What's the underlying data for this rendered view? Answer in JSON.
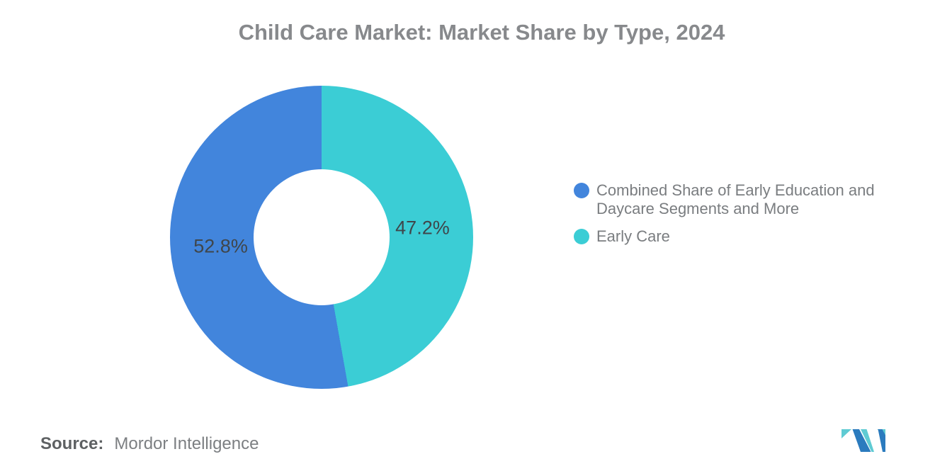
{
  "title": "Child Care Market: Market Share by Type, 2024",
  "chart_data": {
    "type": "pie",
    "subtype": "donut",
    "title": "Child Care Market: Market Share by Type, 2024",
    "slices": [
      {
        "label": "Combined Share of Early Education and Daycare Segments and More",
        "value": 52.8,
        "data_label": "52.8%",
        "color": "#4285dc"
      },
      {
        "label": "Early Care",
        "value": 47.2,
        "data_label": "47.2%",
        "color": "#3bcdd5"
      }
    ],
    "clockwise_order": [
      1,
      0
    ],
    "start_angle_deg": 0,
    "legend_position": "right",
    "hole": true,
    "data_label_color": "#3f464b"
  },
  "legend": {
    "items": [
      {
        "label": "Combined Share of Early Education and Daycare Segments and More",
        "lines": [
          "Combined Share of Early Education and",
          "Daycare Segments and More"
        ],
        "color": "#4285dc"
      },
      {
        "label": "Early Care",
        "lines": [
          "Early Care"
        ],
        "color": "#3bcdd5"
      }
    ]
  },
  "source": {
    "prefix": "Source:",
    "text": "Mordor Intelligence"
  },
  "logo": {
    "name": "mordor-intelligence-logo",
    "colors": {
      "blue": "#2b7bbe",
      "teal": "#5fcbd3"
    }
  }
}
